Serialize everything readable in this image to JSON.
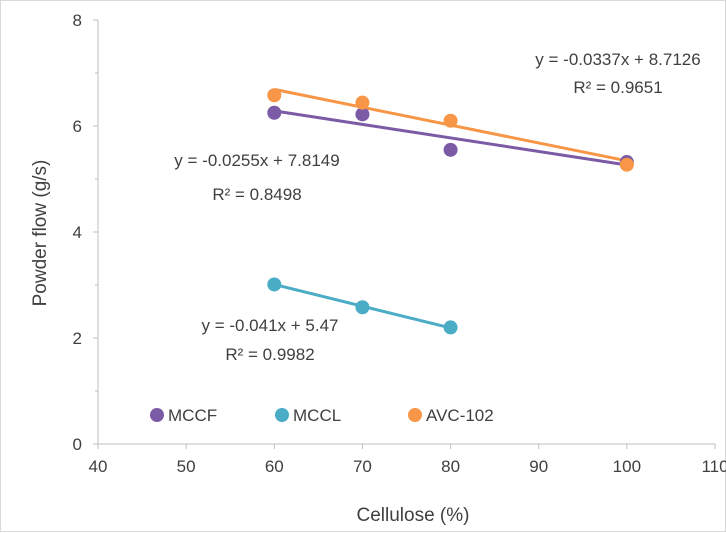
{
  "chart_data": {
    "type": "scatter",
    "title": "",
    "xlabel": "Cellulose (%)",
    "ylabel": "Powder  flow (g/s)",
    "xlim": [
      40,
      110
    ],
    "ylim": [
      0,
      8
    ],
    "x_ticks": [
      "40",
      "50",
      "60",
      "70",
      "80",
      "90",
      "100",
      "110"
    ],
    "y_ticks": [
      "0",
      "2",
      "4",
      "6",
      "8"
    ],
    "grid": false,
    "legend_position": "bottom-left inside",
    "series": [
      {
        "name": "MCCF",
        "color": "#7b5aa6",
        "x": [
          60,
          70,
          80,
          100
        ],
        "y": [
          6.25,
          6.22,
          5.55,
          5.32
        ],
        "trendline": {
          "slope": -0.0255,
          "intercept": 7.8149,
          "equation": "y = -0.0255x + 7.8149",
          "r2": "R² = 0.8498"
        }
      },
      {
        "name": "MCCL",
        "color": "#4bacc6",
        "x": [
          60,
          70,
          80
        ],
        "y": [
          3.01,
          2.58,
          2.2
        ],
        "trendline": {
          "slope": -0.041,
          "intercept": 5.47,
          "equation": "y = -0.041x + 5.47",
          "r2": "R² = 0.9982"
        }
      },
      {
        "name": "AVC-102",
        "color": "#f79646",
        "x": [
          60,
          70,
          80,
          100
        ],
        "y": [
          6.58,
          6.44,
          6.1,
          5.27
        ],
        "trendline": {
          "slope": -0.0337,
          "intercept": 8.7126,
          "equation": "y = -0.0337x + 8.7126",
          "r2": "R² = 0.9651"
        }
      }
    ]
  }
}
